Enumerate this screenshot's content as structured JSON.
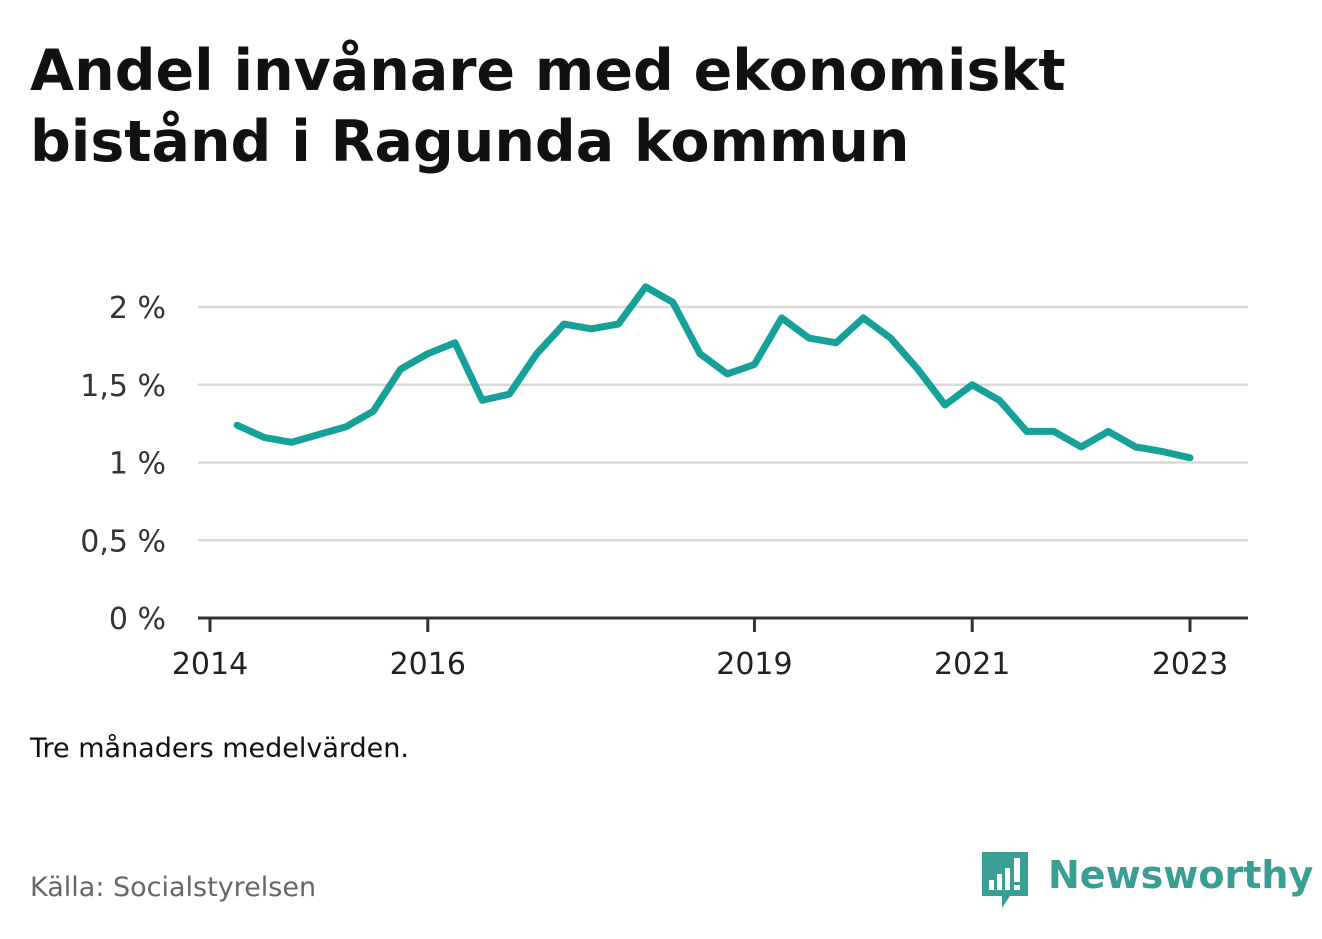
{
  "title": "Andel invånare med ekonomiskt bistånd i Ragunda kommun",
  "note": "Tre månaders medelvärden.",
  "source": "Källa: Socialstyrelsen",
  "brand": {
    "name": "Newsworthy",
    "icon": "bar-chart-speech-bubble-icon",
    "color": "#3a9e95"
  },
  "colors": {
    "line": "#16a09a",
    "grid": "#d9d9d9",
    "axis": "#333333"
  },
  "chart_data": {
    "type": "line",
    "title": "Andel invånare med ekonomiskt bistånd i Ragunda kommun",
    "xlabel": "",
    "ylabel": "",
    "grid": true,
    "ylim": [
      0,
      2.2
    ],
    "xlim": [
      "2014-01-01",
      "2023-06-01"
    ],
    "yticks": [
      0,
      0.5,
      1,
      1.5,
      2
    ],
    "ytick_labels": [
      "0 %",
      "0,5 %",
      "1 %",
      "1,5 %",
      "2 %"
    ],
    "xticks": [
      "2014",
      "2016",
      "2019",
      "2021",
      "2023"
    ],
    "series": [
      {
        "color": "#16a09a",
        "points": [
          [
            "2014-04",
            1.24
          ],
          [
            "2014-07",
            1.16
          ],
          [
            "2014-10",
            1.13
          ],
          [
            "2015-01",
            1.18
          ],
          [
            "2015-04",
            1.23
          ],
          [
            "2015-07",
            1.33
          ],
          [
            "2015-10",
            1.6
          ],
          [
            "2016-01",
            1.7
          ],
          [
            "2016-04",
            1.77
          ],
          [
            "2016-07",
            1.4
          ],
          [
            "2016-10",
            1.44
          ],
          [
            "2017-01",
            1.7
          ],
          [
            "2017-04",
            1.89
          ],
          [
            "2017-07",
            1.86
          ],
          [
            "2017-10",
            1.89
          ],
          [
            "2018-01",
            2.13
          ],
          [
            "2018-04",
            2.03
          ],
          [
            "2018-07",
            1.7
          ],
          [
            "2018-10",
            1.57
          ],
          [
            "2019-01",
            1.63
          ],
          [
            "2019-04",
            1.93
          ],
          [
            "2019-07",
            1.8
          ],
          [
            "2019-10",
            1.77
          ],
          [
            "2020-01",
            1.93
          ],
          [
            "2020-04",
            1.8
          ],
          [
            "2020-07",
            1.6
          ],
          [
            "2020-10",
            1.37
          ],
          [
            "2021-01",
            1.5
          ],
          [
            "2021-04",
            1.4
          ],
          [
            "2021-07",
            1.2
          ],
          [
            "2021-10",
            1.2
          ],
          [
            "2022-01",
            1.1
          ],
          [
            "2022-04",
            1.2
          ],
          [
            "2022-07",
            1.1
          ],
          [
            "2022-10",
            1.07
          ],
          [
            "2023-01",
            1.03
          ]
        ]
      }
    ]
  }
}
